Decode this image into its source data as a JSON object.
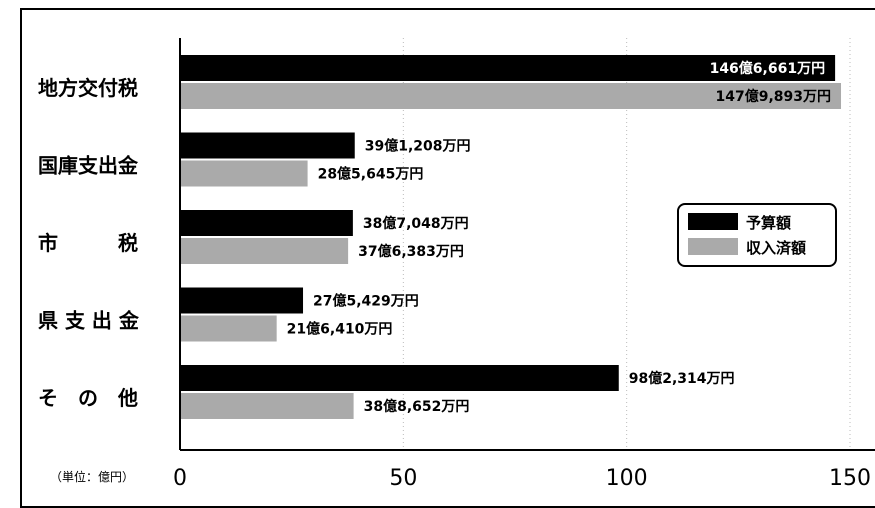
{
  "chart_data": {
    "type": "bar",
    "orientation": "horizontal",
    "categories": [
      "地方交付税",
      "国庫支出金",
      "市　　　税",
      "県 支 出 金",
      "そ　の　他"
    ],
    "series": [
      {
        "name": "予算額",
        "color": "#000000",
        "values": [
          146.6661,
          39.1208,
          38.7048,
          27.5429,
          98.2314
        ],
        "labels": [
          "146億6,661万円",
          "39億1,208万円",
          "38億7,048万円",
          "27億5,429万円",
          "98億2,314万円"
        ]
      },
      {
        "name": "収入済額",
        "color": "#aaaaaa",
        "values": [
          147.9893,
          28.5645,
          37.6383,
          21.641,
          38.8652
        ],
        "labels": [
          "147億9,893万円",
          "28億5,645万円",
          "37億6,383万円",
          "21億6,410万円",
          "38億8,652万円"
        ]
      }
    ],
    "x_ticks": [
      "0",
      "50",
      "100",
      "150"
    ],
    "xlim": [
      0,
      150
    ],
    "unit_label": "（単位：億円）",
    "grid": "vertical-dotted",
    "legend_position": "right"
  }
}
